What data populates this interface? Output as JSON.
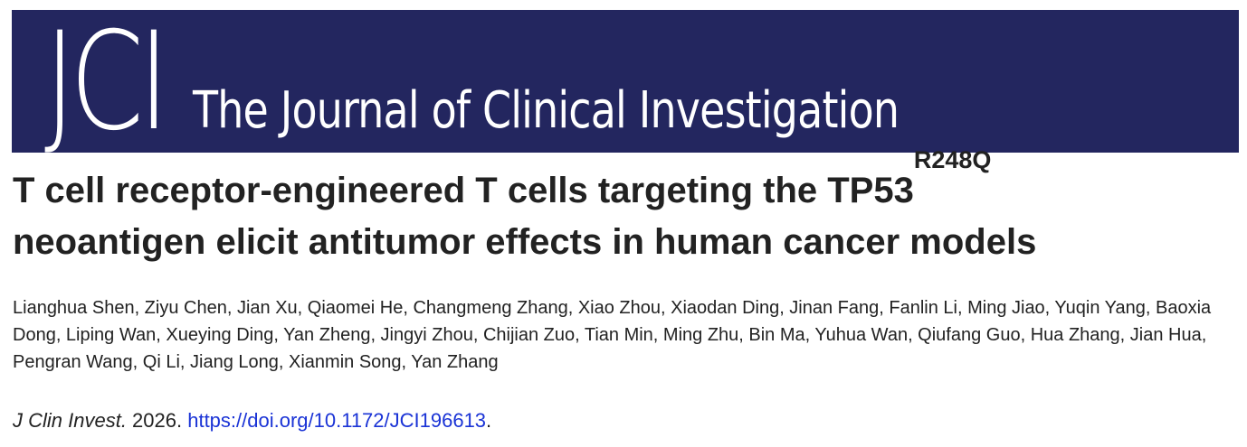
{
  "banner": {
    "logo": "JCI",
    "journal_name": "The Journal of Clinical Investigation",
    "background_color": "#23265f",
    "text_color": "#ffffff"
  },
  "article": {
    "title_main": "T cell receptor-engineered T cells targeting the TP53",
    "title_superscript": "R248Q",
    "title_line2": "neoantigen elicit antitumor effects in human cancer models",
    "authors": "Lianghua Shen, Ziyu Chen, Jian Xu, Qiaomei He, Changmeng Zhang, Xiao Zhou, Xiaodan Ding, Jinan Fang, Fanlin Li, Ming Jiao, Yuqin Yang, Baoxia Dong, Liping Wan, Xueying Ding, Yan Zheng, Jingyi Zhou, Chijian Zuo, Tian Min, Ming Zhu, Bin Ma, Yuhua Wan, Qiufang Guo, Hua Zhang, Jian Hua, Pengran Wang, Qi Li, Jiang Long, Xianmin Song, Yan Zhang"
  },
  "citation": {
    "journal_abbrev": "J Clin Invest.",
    "year": " 2026. ",
    "doi_link": "https://doi.org/10.1172/JCI196613",
    "trailing": ".",
    "link_color": "#1a33d6"
  }
}
